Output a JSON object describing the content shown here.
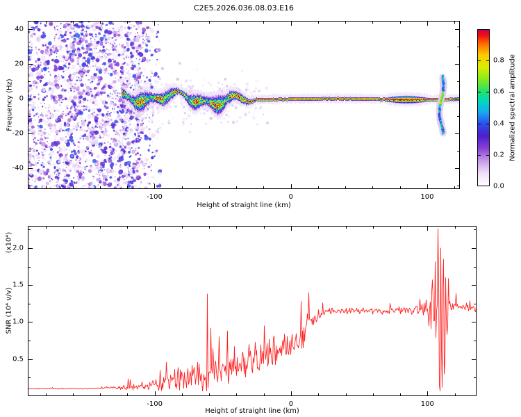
{
  "title": "C2E5.2026.036.08.03.E16",
  "panels": {
    "spectrogram": {
      "xlabel": "Height of straight line (km)",
      "ylabel": "Frequency (Hz)",
      "xlim": [
        -193,
        124
      ],
      "ylim": [
        -52,
        45
      ],
      "xticks": [
        -100,
        0,
        100
      ],
      "xtick_labels": [
        "-100",
        "0",
        "100"
      ],
      "xminor_step": 20,
      "yticks": [
        -40,
        -20,
        0,
        20,
        40
      ],
      "ytick_labels": [
        "-40",
        "-20",
        "0",
        "20",
        "40"
      ],
      "yminor_step": 10
    },
    "colorbar": {
      "label": "Normalized spectral amplitude",
      "range": [
        0,
        1
      ],
      "ticks": [
        0,
        0.2,
        0.4,
        0.6,
        0.8
      ],
      "tick_labels": [
        "0.0",
        "0.2",
        "0.4",
        "0.6",
        "0.8"
      ]
    },
    "snr": {
      "xlabel": "Height of straight line (km)",
      "ylabel": "SNR (10⁴ v/v)",
      "scale_note": "(x10⁴)",
      "line_color": "#ff2222",
      "xlim": [
        -193,
        136
      ],
      "ylim": [
        0,
        2.3
      ],
      "xticks": [
        -100,
        0,
        100
      ],
      "xtick_labels": [
        "-100",
        "0",
        "100"
      ],
      "xminor_step": 20,
      "yticks": [
        0.5,
        1.0,
        1.5,
        2.0
      ],
      "ytick_labels": [
        "0.5",
        "1.0",
        "1.5",
        "2.0"
      ],
      "yminor_step": 0.25
    }
  },
  "chart_data": [
    {
      "type": "heatmap",
      "description": "Radio occultation power spectrogram: broadband purple speckle noise at heights below about -112 km; a narrow signal trace near 0 Hz meandering (about ±5 Hz, half-width 1-4 Hz) between -124 and -25 km; above -25 km it collapses to a thin saturated red line at 0 Hz out to the right edge, with a vertical ringing disturbance near 110 km spanning -20 to +13 Hz.",
      "xlabel": "Height of straight line (km)",
      "ylabel": "Frequency (Hz)",
      "value_label": "Normalized spectral amplitude",
      "value_range": [
        0,
        1
      ],
      "colormap_stops": [
        [
          0.0,
          "#ffffff"
        ],
        [
          0.08,
          "#efe0f8"
        ],
        [
          0.16,
          "#c79ae8"
        ],
        [
          0.24,
          "#8a3fd6"
        ],
        [
          0.32,
          "#4b1fd0"
        ],
        [
          0.4,
          "#2d50f0"
        ],
        [
          0.47,
          "#18a8f0"
        ],
        [
          0.54,
          "#00d8c0"
        ],
        [
          0.6,
          "#20e070"
        ],
        [
          0.68,
          "#86ea20"
        ],
        [
          0.76,
          "#d8ee00"
        ],
        [
          0.84,
          "#ffc800"
        ],
        [
          0.91,
          "#ff6a00"
        ],
        [
          0.96,
          "#f51010"
        ],
        [
          1.0,
          "#c4004c"
        ]
      ],
      "noise_field": {
        "from_km": -193,
        "dense_until_km": -112,
        "fade_until_km": -96,
        "amplitude_range": [
          0.05,
          0.42
        ]
      },
      "signal_band": {
        "start_km": -124,
        "wavy_until_km": -25,
        "center_wobble_hz": 5,
        "wavy_halfwidth_hz": [
          1.1,
          4.1
        ],
        "thin_halfwidth_hz": 0.7,
        "thick_segment_km": [
          68,
          102
        ],
        "peak_amplitude": 1.0
      },
      "disturbance": {
        "km": 110.5,
        "freq_extent_hz": [
          -20,
          13
        ],
        "amplitude": 0.65
      }
    },
    {
      "type": "line",
      "name": "SNR vs height",
      "color": "#ff2222",
      "xlabel": "Height of straight line (km)",
      "ylabel": "SNR (10⁴ v/v)",
      "xlim": [
        -193,
        136
      ],
      "ylim": [
        0,
        2.3
      ],
      "profile": [
        [
          -193,
          0.1
        ],
        [
          -150,
          0.1
        ],
        [
          -135,
          0.11
        ],
        [
          -120,
          0.12
        ],
        [
          -110,
          0.13
        ],
        [
          -100,
          0.15
        ],
        [
          -90,
          0.18
        ],
        [
          -80,
          0.22
        ],
        [
          -70,
          0.27
        ],
        [
          -60,
          0.32
        ],
        [
          -50,
          0.36
        ],
        [
          -40,
          0.42
        ],
        [
          -30,
          0.47
        ],
        [
          -20,
          0.52
        ],
        [
          -10,
          0.6
        ],
        [
          0,
          0.7
        ],
        [
          5,
          0.78
        ],
        [
          10,
          0.88
        ],
        [
          15,
          1.0
        ],
        [
          20,
          1.08
        ],
        [
          25,
          1.13
        ],
        [
          35,
          1.15
        ],
        [
          50,
          1.16
        ],
        [
          70,
          1.15
        ],
        [
          85,
          1.16
        ],
        [
          95,
          1.18
        ],
        [
          100,
          1.17
        ],
        [
          105,
          1.15
        ],
        [
          110,
          1.1
        ],
        [
          115,
          1.18
        ],
        [
          120,
          1.22
        ],
        [
          128,
          1.2
        ],
        [
          136,
          1.18
        ]
      ],
      "noise_amplitude": [
        [
          -193,
          0.004
        ],
        [
          -150,
          0.006
        ],
        [
          -132,
          0.01
        ],
        [
          -120,
          0.03
        ],
        [
          -110,
          0.05
        ],
        [
          -100,
          0.07
        ],
        [
          -90,
          0.1
        ],
        [
          -80,
          0.13
        ],
        [
          -70,
          0.16
        ],
        [
          -62,
          0.2
        ],
        [
          -55,
          0.18
        ],
        [
          -45,
          0.2
        ],
        [
          -35,
          0.19
        ],
        [
          -25,
          0.21
        ],
        [
          -15,
          0.21
        ],
        [
          -5,
          0.19
        ],
        [
          5,
          0.17
        ],
        [
          12,
          0.13
        ],
        [
          20,
          0.07
        ],
        [
          28,
          0.04
        ],
        [
          60,
          0.035
        ],
        [
          85,
          0.045
        ],
        [
          95,
          0.07
        ],
        [
          100,
          0.12
        ],
        [
          103,
          0.25
        ],
        [
          105,
          0.55
        ],
        [
          107,
          0.95
        ],
        [
          109,
          1.05
        ],
        [
          111,
          1.0
        ],
        [
          113,
          0.75
        ],
        [
          115,
          0.35
        ],
        [
          117,
          0.1
        ],
        [
          120,
          0.05
        ],
        [
          136,
          0.04
        ]
      ],
      "spikes": [
        [
          -61.5,
          1.38
        ],
        [
          -59,
          0.92
        ],
        [
          -53,
          0.8
        ],
        [
          -47,
          0.88
        ],
        [
          -20,
          0.95
        ],
        [
          7,
          1.28
        ],
        [
          107.5,
          2.26
        ],
        [
          108.6,
          0.15
        ],
        [
          109.5,
          2.0
        ],
        [
          110.4,
          0.12
        ],
        [
          111.3,
          1.85
        ],
        [
          112.2,
          0.3
        ],
        [
          113,
          1.6
        ]
      ]
    }
  ]
}
